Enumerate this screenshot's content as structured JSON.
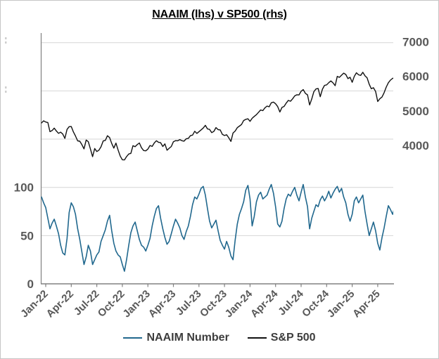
{
  "page": {
    "background": "#ffffff",
    "border_color": "#c6c6c6"
  },
  "chart_data": {
    "type": "line",
    "title": "NAAIM (lhs) v SP500 (rhs)",
    "grid": true,
    "legend_position": "bottom",
    "x_axis": {
      "tick_labels": [
        "Jan-22",
        "Apr-22",
        "Jul-22",
        "Oct-22",
        "Jan-23",
        "Apr-23",
        "Jul-23",
        "Oct-23",
        "Jan-24",
        "Apr-24",
        "Jul-24",
        "Oct-24",
        "Jan-25",
        "Apr-25"
      ],
      "tick_positions_months": [
        0,
        3,
        6,
        9,
        12,
        15,
        18,
        21,
        24,
        27,
        30,
        33,
        36,
        39
      ],
      "label_rotation_deg": -45
    },
    "left_axis": {
      "side": "left",
      "series": "NAAIM Number",
      "min": 0,
      "max": 260,
      "tick_values_shown": [
        100,
        50,
        0
      ],
      "tick_labels_shown": [
        "100",
        "50",
        "0"
      ],
      "gridline_values": [
        50,
        100,
        150,
        200,
        250
      ]
    },
    "right_axis": {
      "side": "right",
      "series": "S&P 500",
      "min": 0,
      "max": 7250,
      "tick_values_shown": [
        7000,
        6000,
        5000,
        4000
      ],
      "tick_labels_shown": [
        "7000",
        "6000",
        "5000",
        "4000"
      ]
    },
    "x_grid": {
      "start": -0.5,
      "step": 0.25,
      "count": 167,
      "unit": "months since Jan-2022 (weekly samples)"
    },
    "series": [
      {
        "name": "NAAIM Number",
        "color": "#21688e",
        "axis": "left",
        "stroke_width": 1.6,
        "values": [
          90,
          84,
          79,
          68,
          57,
          63,
          67,
          60,
          52,
          40,
          32,
          30,
          47,
          74,
          84,
          80,
          72,
          57,
          46,
          33,
          20,
          28,
          40,
          34,
          20,
          25,
          30,
          33,
          44,
          50,
          56,
          65,
          71,
          55,
          42,
          34,
          30,
          28,
          20,
          13,
          25,
          40,
          53,
          60,
          64,
          55,
          46,
          40,
          38,
          34,
          40,
          47,
          60,
          70,
          78,
          81,
          68,
          57,
          48,
          41,
          44,
          52,
          60,
          67,
          63,
          58,
          50,
          46,
          54,
          60,
          70,
          82,
          90,
          88,
          93,
          99,
          101,
          92,
          78,
          65,
          58,
          62,
          66,
          55,
          45,
          40,
          36,
          44,
          38,
          29,
          25,
          45,
          62,
          72,
          78,
          85,
          97,
          102,
          88,
          60,
          70,
          85,
          92,
          95,
          88,
          90,
          92,
          98,
          103,
          94,
          80,
          62,
          59,
          65,
          78,
          88,
          93,
          91,
          96,
          100,
          92,
          86,
          95,
          103,
          90,
          80,
          57,
          68,
          75,
          82,
          80,
          87,
          91,
          86,
          90,
          96,
          89,
          94,
          98,
          101,
          95,
          99,
          90,
          84,
          72,
          65,
          72,
          86,
          90,
          84,
          88,
          92,
          75,
          62,
          50,
          57,
          64,
          55,
          42,
          35,
          48,
          58,
          70,
          81,
          77,
          72,
          80
        ]
      },
      {
        "name": "S&P 500",
        "color": "#111111",
        "axis": "right",
        "stroke_width": 1.4,
        "values": [
          4650,
          4712,
          4677,
          4663,
          4398,
          4432,
          4501,
          4419,
          4349,
          4385,
          4329,
          4204,
          4463,
          4543,
          4546,
          4393,
          4272,
          4132,
          4123,
          4024,
          3901,
          4158,
          4109,
          3901,
          3675,
          3912,
          3825,
          3863,
          3962,
          4130,
          4145,
          4280,
          4228,
          4058,
          3924,
          4067,
          3873,
          3693,
          3586,
          3583,
          3678,
          3753,
          3771,
          3993,
          3965,
          4026,
          4072,
          3934,
          3852,
          3844,
          3895,
          3999,
          3973,
          4071,
          4136,
          4090,
          4079,
          3970,
          4046,
          3862,
          3917,
          3971,
          4109,
          4138,
          4134,
          4169,
          4136,
          4124,
          4192,
          4205,
          4282,
          4299,
          4410,
          4348,
          4399,
          4450,
          4505,
          4582,
          4478,
          4464,
          4370,
          4406,
          4516,
          4457,
          4450,
          4320,
          4288,
          4309,
          4224,
          4117,
          4358,
          4415,
          4514,
          4560,
          4605,
          4719,
          4755,
          4770,
          4698,
          4784,
          4840,
          4891,
          4959,
          5027,
          5006,
          5089,
          5137,
          5118,
          5234,
          5254,
          5204,
          5123,
          4967,
          5100,
          5128,
          5223,
          5303,
          5278,
          5347,
          5432,
          5465,
          5460,
          5567,
          5615,
          5505,
          5463,
          5170,
          5344,
          5554,
          5634,
          5648,
          5408,
          5626,
          5738,
          5751,
          5815,
          5865,
          5808,
          5729,
          5996,
          5969,
          6032,
          6090,
          6051,
          5931,
          5971,
          5827,
          5997,
          6101,
          6041,
          6026,
          6115,
          6013,
          5955,
          5770,
          5639,
          5668,
          5560,
          5270,
          5350,
          5400,
          5525,
          5687,
          5812,
          5889,
          5940,
          5950
        ]
      }
    ]
  },
  "colors": {
    "gridline": "#d6d6d6",
    "axis_line": "#808080",
    "tick_label": "#595959",
    "legend_text": "#3d3d3d",
    "title": "#000000"
  }
}
